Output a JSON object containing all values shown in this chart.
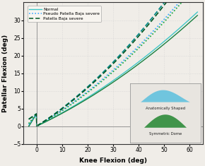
{
  "xlabel": "Knee Flexion (deg)",
  "ylabel": "Patellar Flexion (deg)",
  "xlim": [
    -5,
    65
  ],
  "ylim": [
    -5,
    35
  ],
  "xticks": [
    0,
    10,
    20,
    30,
    40,
    50,
    60
  ],
  "yticks": [
    -5,
    0,
    5,
    10,
    15,
    20,
    25,
    30
  ],
  "bg_color": "#f0ede8",
  "inset_bg": "#e8e5e0",
  "c_norm_anat": "#40C8C8",
  "c_norm_sym": "#1A8040",
  "c_pseudo_anat": "#40AAFF",
  "c_pseudo_sym": "#22AA44",
  "c_baja_anat": "#008888",
  "c_baja_sym": "#005522",
  "anat_shape_color": "#5BC0DE",
  "sym_dome_color": "#2E8B3A"
}
